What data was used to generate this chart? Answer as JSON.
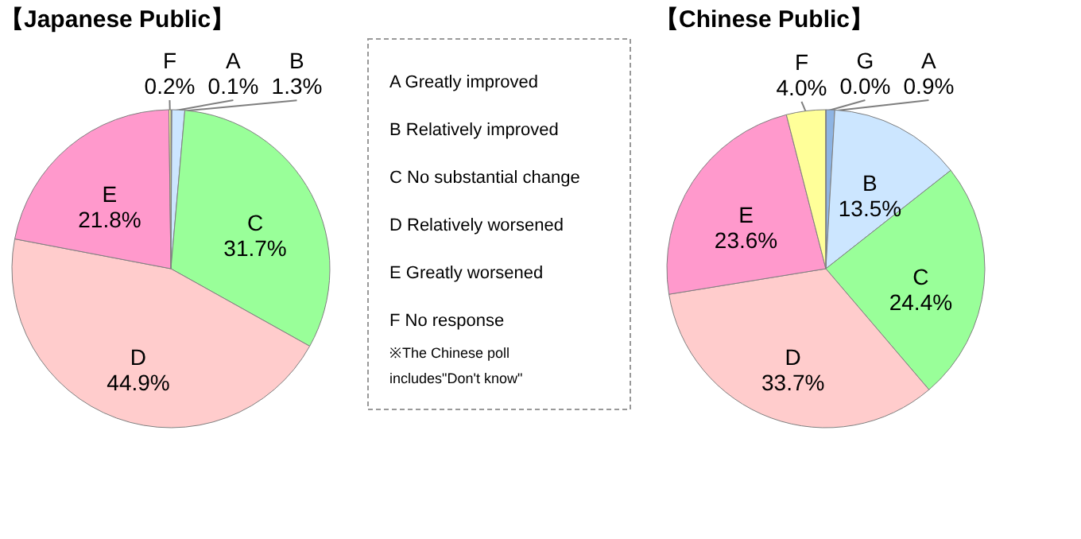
{
  "chart_data": [
    {
      "type": "pie",
      "title": "【Japanese Public】",
      "categories": [
        "A",
        "B",
        "C",
        "D",
        "E",
        "F"
      ],
      "values": [
        0.1,
        1.3,
        31.7,
        44.9,
        21.8,
        0.2
      ],
      "colors": [
        "#8eb4e3",
        "#cce6ff",
        "#99ff99",
        "#ffcccc",
        "#ff99cc",
        "#ffff99"
      ],
      "value_labels": [
        "0.1%",
        "1.3%",
        "31.7%",
        "44.9%",
        "21.8%",
        "0.2%"
      ]
    },
    {
      "type": "other",
      "annotations": [
        "A  Greatly improved",
        "B  Relatively improved",
        "C  No substantial change",
        "D  Relatively worsened",
        "E  Greatly worsened",
        "F  No response",
        "※The Chinese poll\nincludes\"Don't know\""
      ]
    },
    {
      "type": "pie",
      "title": "【Chinese Public】",
      "categories": [
        "A",
        "B",
        "C",
        "D",
        "E",
        "F",
        "G"
      ],
      "values": [
        0.9,
        13.5,
        24.4,
        33.7,
        23.6,
        4.0,
        0.0
      ],
      "colors": [
        "#8eb4e3",
        "#cce6ff",
        "#99ff99",
        "#ffcccc",
        "#ff99cc",
        "#ffff99",
        "#d9d9d9"
      ],
      "value_labels": [
        "0.9%",
        "13.5%",
        "24.4%",
        "33.7%",
        "23.6%",
        "4.0%",
        "0.0%"
      ]
    }
  ]
}
